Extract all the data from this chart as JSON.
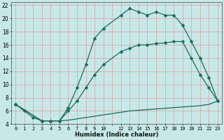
{
  "bg_color": "#c8e8e8",
  "grid_color": "#d4a0a0",
  "line_color": "#1a6b5a",
  "xlabel": "Humidex (Indice chaleur)",
  "xlim": [
    -0.5,
    23.5
  ],
  "ylim": [
    4,
    22.5
  ],
  "yticks": [
    4,
    6,
    8,
    10,
    12,
    14,
    16,
    18,
    20,
    22
  ],
  "line_A_x": [
    0,
    1,
    2,
    3,
    4,
    5,
    6,
    7,
    8,
    9,
    10,
    12,
    13,
    14,
    15,
    16,
    17,
    18,
    19,
    20,
    21,
    22,
    23
  ],
  "line_A_y": [
    7,
    6,
    5,
    4.5,
    4.5,
    4.5,
    6.5,
    9.5,
    13,
    17,
    18.5,
    20.5,
    21.5,
    21,
    20.5,
    21,
    20.5,
    20.5,
    19,
    16.5,
    14,
    11,
    7.5
  ],
  "line_B_x": [
    0,
    3,
    4,
    5,
    6,
    7,
    8,
    9,
    10,
    12,
    13,
    14,
    15,
    16,
    17,
    18,
    19,
    20,
    21,
    22,
    23
  ],
  "line_B_y": [
    7,
    4.5,
    4.5,
    4.5,
    6.0,
    7.5,
    9.5,
    11.5,
    13.0,
    15.0,
    15.5,
    16.0,
    16.0,
    16.2,
    16.3,
    16.5,
    16.5,
    14.0,
    11.5,
    9.5,
    7.5
  ],
  "line_C_x": [
    0,
    3,
    4,
    5,
    6,
    7,
    8,
    9,
    10,
    12,
    13,
    14,
    15,
    16,
    17,
    18,
    19,
    20,
    21,
    22,
    23
  ],
  "line_C_y": [
    7,
    4.5,
    4.5,
    4.5,
    4.6,
    4.8,
    5.0,
    5.2,
    5.4,
    5.8,
    6.0,
    6.1,
    6.2,
    6.3,
    6.4,
    6.5,
    6.6,
    6.7,
    6.8,
    7.0,
    7.5
  ]
}
